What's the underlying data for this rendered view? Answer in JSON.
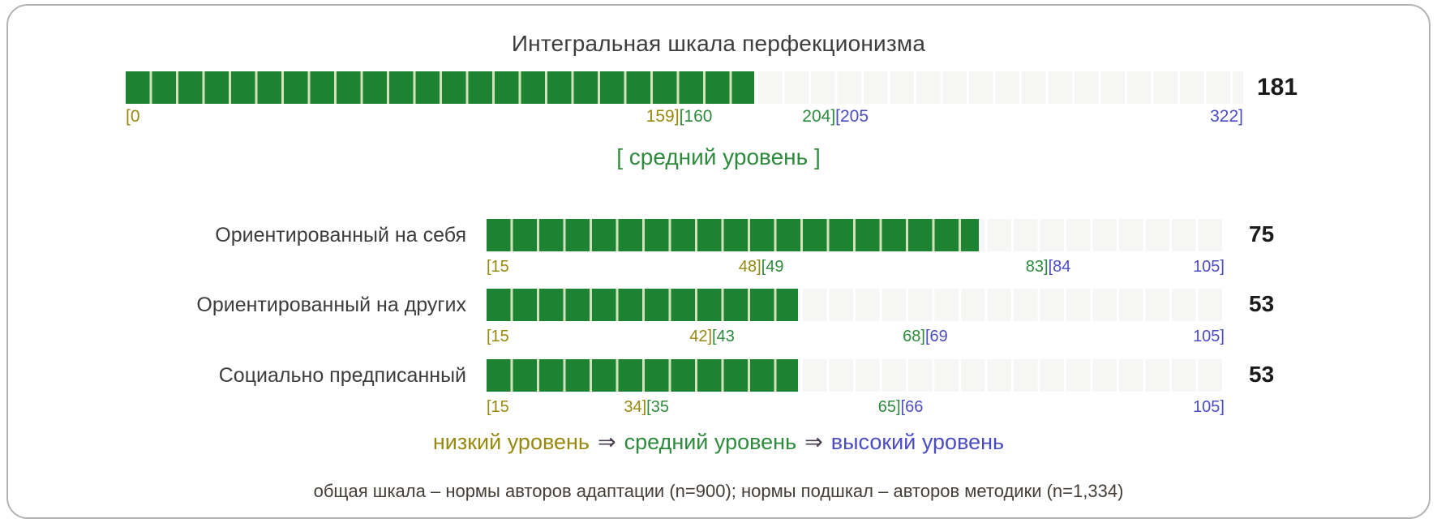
{
  "title": "Интегральная шкала перфекционизма",
  "palette": {
    "low_color": "#97890e",
    "mid_color": "#2e8b3d",
    "high_color": "#4c4cc2",
    "bar_fill": "#1e8233",
    "bar_fill_gap": "#d2e3bb",
    "bar_track": "#f6f6f4",
    "bar_track_gap": "#ffffff",
    "value_color": "#1b1b1b"
  },
  "main_scale": {
    "value": "181",
    "numeric_value": 181,
    "min": 0,
    "max": 322,
    "level_label": "[ средний уровень ]",
    "ticks": [
      {
        "value": 0,
        "align": "left",
        "parts": [
          {
            "text": "[0",
            "zone": "low"
          }
        ]
      },
      {
        "value": 159.5,
        "align": "center",
        "parts": [
          {
            "text": "159]",
            "zone": "low"
          },
          {
            "text": "[160",
            "zone": "mid"
          }
        ]
      },
      {
        "value": 204.5,
        "align": "center",
        "parts": [
          {
            "text": "204]",
            "zone": "mid"
          },
          {
            "text": "[205",
            "zone": "high"
          }
        ]
      },
      {
        "value": 322,
        "align": "right",
        "parts": [
          {
            "text": "322]",
            "zone": "high"
          }
        ]
      }
    ]
  },
  "subscales": [
    {
      "label": "Ориентированный на себя",
      "value": "75",
      "numeric_value": 75,
      "min": 15,
      "max": 105,
      "ticks": [
        {
          "value": 15,
          "align": "left",
          "parts": [
            {
              "text": "[15",
              "zone": "low"
            }
          ]
        },
        {
          "value": 48.5,
          "align": "center",
          "parts": [
            {
              "text": "48]",
              "zone": "low"
            },
            {
              "text": "[49",
              "zone": "mid"
            }
          ]
        },
        {
          "value": 83.5,
          "align": "center",
          "parts": [
            {
              "text": "83]",
              "zone": "mid"
            },
            {
              "text": "[84",
              "zone": "high"
            }
          ]
        },
        {
          "value": 105,
          "align": "right",
          "parts": [
            {
              "text": "105]",
              "zone": "high"
            }
          ]
        }
      ]
    },
    {
      "label": "Ориентированный на других",
      "value": "53",
      "numeric_value": 53,
      "min": 15,
      "max": 105,
      "ticks": [
        {
          "value": 15,
          "align": "left",
          "parts": [
            {
              "text": "[15",
              "zone": "low"
            }
          ]
        },
        {
          "value": 42.5,
          "align": "center",
          "parts": [
            {
              "text": "42]",
              "zone": "low"
            },
            {
              "text": "[43",
              "zone": "mid"
            }
          ]
        },
        {
          "value": 68.5,
          "align": "center",
          "parts": [
            {
              "text": "68]",
              "zone": "mid"
            },
            {
              "text": "[69",
              "zone": "high"
            }
          ]
        },
        {
          "value": 105,
          "align": "right",
          "parts": [
            {
              "text": "105]",
              "zone": "high"
            }
          ]
        }
      ]
    },
    {
      "label": "Социально предписанный",
      "value": "53",
      "numeric_value": 53,
      "min": 15,
      "max": 105,
      "ticks": [
        {
          "value": 15,
          "align": "left",
          "parts": [
            {
              "text": "[15",
              "zone": "low"
            }
          ]
        },
        {
          "value": 34.5,
          "align": "center",
          "parts": [
            {
              "text": "34]",
              "zone": "low"
            },
            {
              "text": "[35",
              "zone": "mid"
            }
          ]
        },
        {
          "value": 65.5,
          "align": "center",
          "parts": [
            {
              "text": "65]",
              "zone": "mid"
            },
            {
              "text": "[66",
              "zone": "high"
            }
          ]
        },
        {
          "value": 105,
          "align": "right",
          "parts": [
            {
              "text": "105]",
              "zone": "high"
            }
          ]
        }
      ]
    }
  ],
  "legend": {
    "low": "низкий уровень",
    "arrow": "⇒",
    "mid": "средний уровень",
    "high": "высокий уровень"
  },
  "footnote": "общая шкала – нормы авторов адаптации (n=900); нормы подшкал – авторов методики (n=1,334)",
  "chart_data": {
    "type": "bar",
    "title": "Интегральная шкала перфекционизма",
    "orientation": "horizontal",
    "series": [
      {
        "name": "Интегральная шкала перфекционизма",
        "value": 181,
        "scale_min": 0,
        "scale_max": 322,
        "low_zone": [
          0,
          159
        ],
        "mid_zone": [
          160,
          204
        ],
        "high_zone": [
          205,
          322
        ],
        "level": "средний уровень"
      },
      {
        "name": "Ориентированный на себя",
        "value": 75,
        "scale_min": 15,
        "scale_max": 105,
        "low_zone": [
          15,
          48
        ],
        "mid_zone": [
          49,
          83
        ],
        "high_zone": [
          84,
          105
        ]
      },
      {
        "name": "Ориентированный на других",
        "value": 53,
        "scale_min": 15,
        "scale_max": 105,
        "low_zone": [
          15,
          42
        ],
        "mid_zone": [
          43,
          68
        ],
        "high_zone": [
          69,
          105
        ]
      },
      {
        "name": "Социально предписанный",
        "value": 53,
        "scale_min": 15,
        "scale_max": 105,
        "low_zone": [
          15,
          34
        ],
        "mid_zone": [
          35,
          65
        ],
        "high_zone": [
          66,
          105
        ]
      }
    ],
    "legend_entries": [
      "низкий уровень",
      "средний уровень",
      "высокий уровень"
    ],
    "annotations": [
      "[ средний уровень ]",
      "общая шкала – нормы авторов адаптации (n=900); нормы подшкал – авторов методики (n=1,334)"
    ]
  }
}
